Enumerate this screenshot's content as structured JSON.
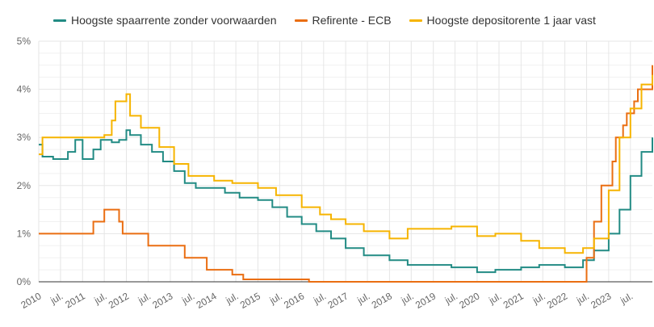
{
  "colors": {
    "teal": "#228b84",
    "orange": "#ea6e12",
    "yellow": "#f6b400",
    "grid": "#e6e6e6",
    "axis_text": "#666666"
  },
  "chart_data": {
    "type": "line",
    "line_style": "step",
    "xlim": [
      "2010-01-01",
      "2023-12-31"
    ],
    "ylim": [
      0,
      5
    ],
    "y_unit": "%",
    "grid": true,
    "legend_position": "top",
    "y_ticks": [
      "0%",
      "1%",
      "2%",
      "3%",
      "4%",
      "5%"
    ],
    "x_ticks": [
      {
        "date": "2010-01-01",
        "label": "2010"
      },
      {
        "date": "2010-07-01",
        "label": "jul."
      },
      {
        "date": "2011-01-01",
        "label": "2011"
      },
      {
        "date": "2011-07-01",
        "label": "jul."
      },
      {
        "date": "2012-01-01",
        "label": "2012"
      },
      {
        "date": "2012-07-01",
        "label": "jul."
      },
      {
        "date": "2013-01-01",
        "label": "2013"
      },
      {
        "date": "2013-07-01",
        "label": "jul."
      },
      {
        "date": "2014-01-01",
        "label": "2014"
      },
      {
        "date": "2014-07-01",
        "label": "jul."
      },
      {
        "date": "2015-01-01",
        "label": "2015"
      },
      {
        "date": "2015-07-01",
        "label": "jul."
      },
      {
        "date": "2016-01-01",
        "label": "2016"
      },
      {
        "date": "2016-07-01",
        "label": "jul."
      },
      {
        "date": "2017-01-01",
        "label": "2017"
      },
      {
        "date": "2017-07-01",
        "label": "jul."
      },
      {
        "date": "2018-01-01",
        "label": "2018"
      },
      {
        "date": "2018-07-01",
        "label": "jul."
      },
      {
        "date": "2019-01-01",
        "label": "2019"
      },
      {
        "date": "2019-07-01",
        "label": "jul."
      },
      {
        "date": "2020-01-01",
        "label": "2020"
      },
      {
        "date": "2020-07-01",
        "label": "jul."
      },
      {
        "date": "2021-01-01",
        "label": "2021"
      },
      {
        "date": "2021-07-01",
        "label": "jul."
      },
      {
        "date": "2022-01-01",
        "label": "2022"
      },
      {
        "date": "2022-07-01",
        "label": "jul."
      },
      {
        "date": "2023-01-01",
        "label": "2023"
      },
      {
        "date": "2023-07-01",
        "label": "jul."
      }
    ],
    "series": [
      {
        "name": "Hoogste spaarrente zonder voorwaarden",
        "color": "#228b84",
        "x": [
          "2010-01-01",
          "2010-02-01",
          "2010-05-01",
          "2010-09-01",
          "2010-11-01",
          "2011-01-01",
          "2011-04-01",
          "2011-06-01",
          "2011-09-01",
          "2011-11-01",
          "2012-01-01",
          "2012-02-01",
          "2012-05-01",
          "2012-08-01",
          "2012-11-01",
          "2013-02-01",
          "2013-05-01",
          "2013-08-01",
          "2013-11-01",
          "2014-04-01",
          "2014-08-01",
          "2015-01-01",
          "2015-05-01",
          "2015-09-01",
          "2016-01-01",
          "2016-05-01",
          "2016-09-01",
          "2017-01-01",
          "2017-06-01",
          "2018-01-01",
          "2018-06-01",
          "2019-01-01",
          "2019-06-01",
          "2020-01-01",
          "2020-06-01",
          "2021-01-01",
          "2021-06-01",
          "2022-01-01",
          "2022-06-01",
          "2022-09-01",
          "2023-01-01",
          "2023-04-01",
          "2023-07-01",
          "2023-10-01",
          "2023-12-31"
        ],
        "y": [
          2.85,
          2.6,
          2.55,
          2.7,
          2.95,
          2.55,
          2.75,
          2.95,
          2.9,
          2.95,
          3.15,
          3.05,
          2.85,
          2.7,
          2.5,
          2.3,
          2.05,
          1.95,
          1.95,
          1.85,
          1.75,
          1.7,
          1.55,
          1.35,
          1.2,
          1.05,
          0.9,
          0.7,
          0.55,
          0.45,
          0.35,
          0.35,
          0.3,
          0.2,
          0.25,
          0.3,
          0.35,
          0.3,
          0.45,
          0.65,
          1.0,
          1.5,
          2.2,
          2.7,
          3.0
        ]
      },
      {
        "name": "Refirente - ECB",
        "color": "#ea6e12",
        "x": [
          "2010-01-01",
          "2011-04-01",
          "2011-07-01",
          "2011-11-01",
          "2011-12-01",
          "2012-07-01",
          "2013-05-01",
          "2013-11-01",
          "2014-06-01",
          "2014-09-01",
          "2015-12-01",
          "2016-03-01",
          "2022-07-01",
          "2022-09-01",
          "2022-11-01",
          "2023-02-01",
          "2023-03-01",
          "2023-05-01",
          "2023-06-01",
          "2023-08-01",
          "2023-09-01",
          "2023-12-31"
        ],
        "y": [
          1.0,
          1.25,
          1.5,
          1.25,
          1.0,
          0.75,
          0.5,
          0.25,
          0.15,
          0.05,
          0.05,
          0.0,
          0.5,
          1.25,
          2.0,
          2.5,
          3.0,
          3.25,
          3.5,
          3.75,
          4.0,
          4.5
        ]
      },
      {
        "name": "Hoogste depositorente 1 jaar vast",
        "color": "#f6b400",
        "x": [
          "2010-01-01",
          "2010-02-01",
          "2011-07-01",
          "2011-09-01",
          "2011-10-01",
          "2012-01-01",
          "2012-02-01",
          "2012-05-01",
          "2012-10-01",
          "2013-02-01",
          "2013-06-01",
          "2014-01-01",
          "2014-06-01",
          "2015-01-01",
          "2015-06-01",
          "2016-01-01",
          "2016-06-01",
          "2016-09-01",
          "2017-01-01",
          "2017-06-01",
          "2018-01-01",
          "2018-06-01",
          "2019-01-01",
          "2019-06-01",
          "2020-01-01",
          "2020-06-01",
          "2021-01-01",
          "2021-06-01",
          "2022-01-01",
          "2022-06-01",
          "2022-09-01",
          "2023-01-01",
          "2023-04-01",
          "2023-07-01",
          "2023-10-01",
          "2023-12-31"
        ],
        "y": [
          2.65,
          3.0,
          3.05,
          3.35,
          3.75,
          3.9,
          3.45,
          3.2,
          2.8,
          2.45,
          2.2,
          2.1,
          2.05,
          1.95,
          1.8,
          1.55,
          1.4,
          1.3,
          1.2,
          1.05,
          0.9,
          1.1,
          1.1,
          1.15,
          0.95,
          1.0,
          0.85,
          0.7,
          0.6,
          0.7,
          0.9,
          1.9,
          3.0,
          3.6,
          4.1,
          4.3
        ]
      }
    ]
  }
}
